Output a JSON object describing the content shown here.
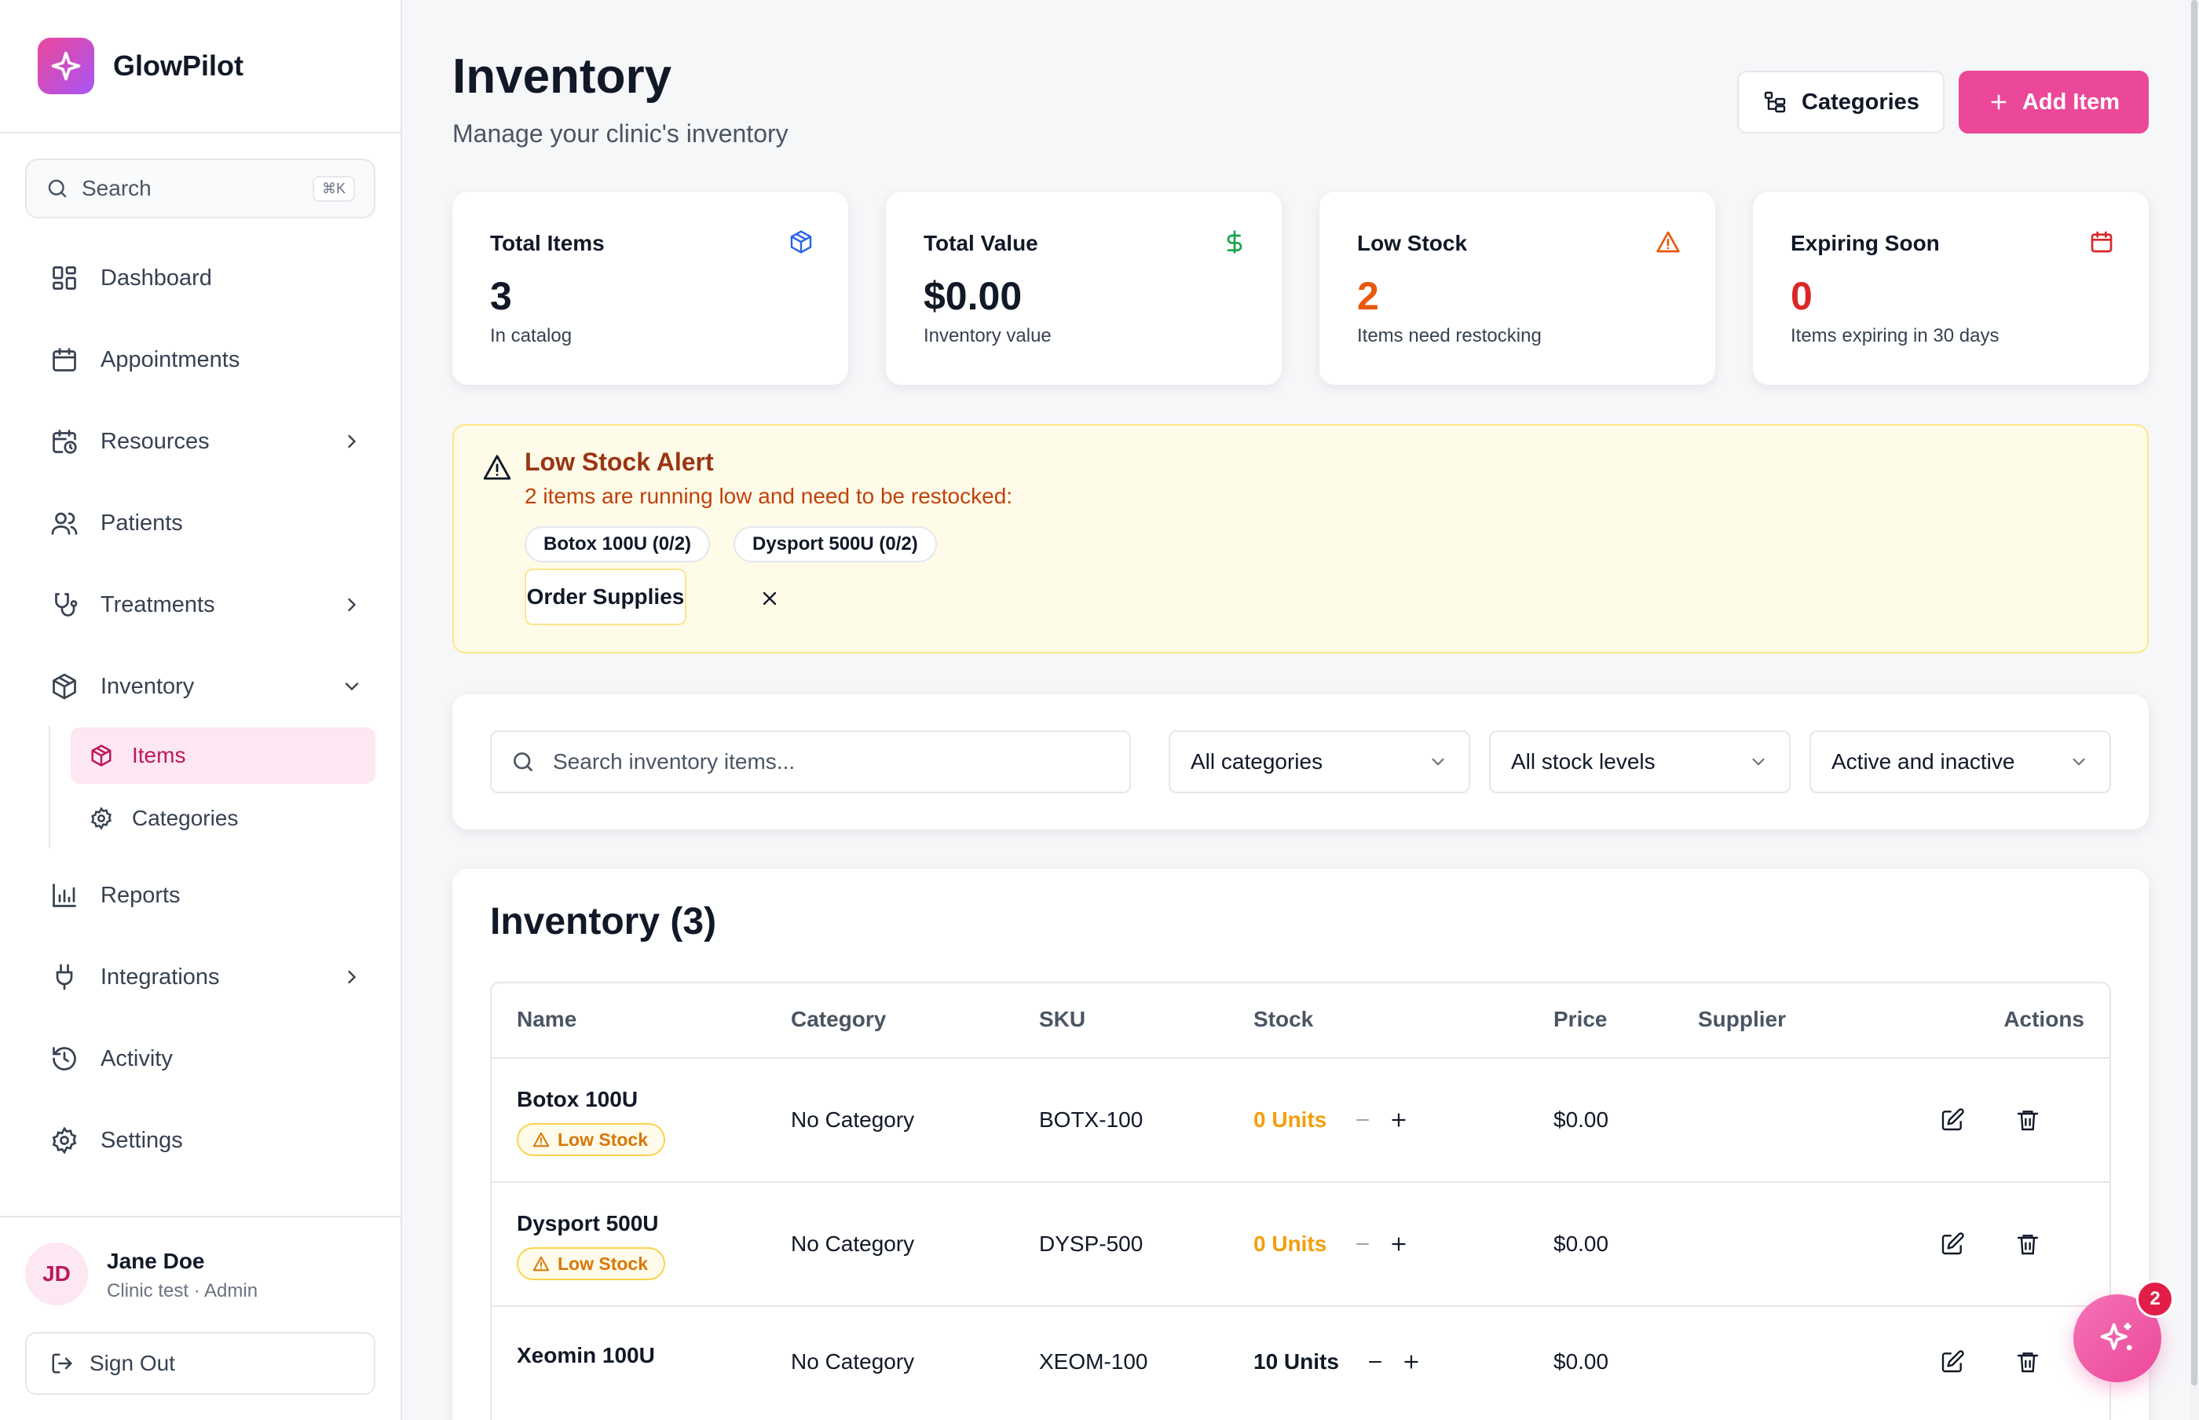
{
  "brand": {
    "name": "GlowPilot",
    "icon": "sparkle-icon"
  },
  "sidebar": {
    "search": {
      "label": "Search",
      "shortcut": "⌘K"
    },
    "items": [
      {
        "label": "Dashboard",
        "icon": "grid-icon"
      },
      {
        "label": "Appointments",
        "icon": "calendar-icon"
      },
      {
        "label": "Resources",
        "icon": "calendar-clock-icon",
        "expandable": true
      },
      {
        "label": "Patients",
        "icon": "users-icon"
      },
      {
        "label": "Treatments",
        "icon": "stethoscope-icon",
        "expandable": true
      },
      {
        "label": "Inventory",
        "icon": "package-icon",
        "expanded": true
      },
      {
        "label": "Reports",
        "icon": "bar-chart-icon"
      },
      {
        "label": "Integrations",
        "icon": "plug-icon",
        "expandable": true
      },
      {
        "label": "Activity",
        "icon": "history-icon"
      },
      {
        "label": "Settings",
        "icon": "gear-icon"
      }
    ],
    "subitems": [
      {
        "label": "Items",
        "icon": "package-icon",
        "active": true
      },
      {
        "label": "Categories",
        "icon": "gear-icon"
      }
    ]
  },
  "user": {
    "initials": "JD",
    "name": "Jane Doe",
    "role": "Clinic test · Admin",
    "signout": "Sign Out"
  },
  "header": {
    "title": "Inventory",
    "subtitle": "Manage your clinic's inventory",
    "categories_button": "Categories",
    "add_button": "Add Item"
  },
  "stats": [
    {
      "title": "Total Items",
      "value": "3",
      "desc": "In catalog",
      "icon": "package-icon",
      "color": "#2563eb",
      "value_color": "#111827"
    },
    {
      "title": "Total Value",
      "value": "$0.00",
      "desc": "Inventory value",
      "icon": "dollar-icon",
      "color": "#16a34a",
      "value_color": "#111827"
    },
    {
      "title": "Low Stock",
      "value": "2",
      "desc": "Items need restocking",
      "icon": "warning-icon",
      "color": "#ea580c",
      "value_color": "#ea580c"
    },
    {
      "title": "Expiring Soon",
      "value": "0",
      "desc": "Items expiring in 30 days",
      "icon": "calendar-icon",
      "color": "#dc2626",
      "value_color": "#dc2626"
    }
  ],
  "alert": {
    "title": "Low Stock Alert",
    "message": "2 items are running low and need to be restocked:",
    "chips": [
      "Botox 100U (0/2)",
      "Dysport 500U (0/2)"
    ],
    "order_button": "Order Supplies"
  },
  "filters": {
    "search_placeholder": "Search inventory items...",
    "category": "All categories",
    "stock": "All stock levels",
    "status": "Active and inactive"
  },
  "table": {
    "title": "Inventory (3)",
    "columns": [
      "Name",
      "Category",
      "SKU",
      "Stock",
      "Price",
      "Supplier",
      "Actions"
    ],
    "rows": [
      {
        "name": "Botox 100U",
        "badge": "Low Stock",
        "category": "No Category",
        "sku": "BOTX-100",
        "stock": "0 Units",
        "price": "$0.00",
        "supplier": ""
      },
      {
        "name": "Dysport 500U",
        "badge": "Low Stock",
        "category": "No Category",
        "sku": "DYSP-500",
        "stock": "0 Units",
        "price": "$0.00",
        "supplier": ""
      },
      {
        "name": "Xeomin 100U",
        "badge": "",
        "category": "No Category",
        "sku": "XEOM-100",
        "stock": "10 Units",
        "price": "$0.00",
        "supplier": ""
      }
    ]
  },
  "assistant": {
    "badge": "2",
    "icon": "sparkle-icon"
  },
  "colors": {
    "accent": "#ec4899",
    "warning": "#f59e0b",
    "alert_bg": "#fefce8"
  }
}
